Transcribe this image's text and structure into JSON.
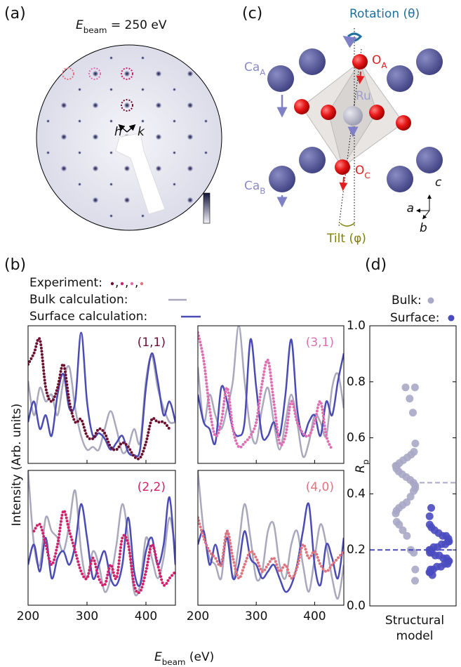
{
  "panels": {
    "a": "(a)",
    "b": "(b)",
    "c": "(c)",
    "d": "(d)"
  },
  "leed": {
    "energy": {
      "symbol": "E",
      "sub": "beam",
      "rest": " = 250 eV"
    },
    "h": "h",
    "k": "k"
  },
  "structure": {
    "rotation": "Rotation (θ)",
    "ca_a": {
      "label": "Ca",
      "sub": "A"
    },
    "o_a": {
      "label": "O",
      "sub": "A"
    },
    "ru": "Ru",
    "o_c": {
      "label": "O",
      "sub": "C"
    },
    "ca_b": {
      "label": "Ca",
      "sub": "B"
    },
    "axis_c": "c",
    "axis_a": "a",
    "axis_b": "b",
    "tilt": "Tilt (φ)"
  },
  "chart_data": [
    {
      "type": "line",
      "legend": {
        "experiment": "Experiment:",
        "separator": ",",
        "bulk": "Bulk calculation:",
        "surface": "Surface calculation:"
      },
      "ylabel": "Intensity (Arb. units)",
      "xlabel": {
        "symbol": "E",
        "sub": "beam",
        "rest": " (eV)"
      },
      "xlim": [
        200,
        450
      ],
      "ylim": [
        0,
        1
      ],
      "xticks": [
        200,
        300,
        400
      ],
      "x": [
        200,
        210,
        220,
        230,
        240,
        250,
        260,
        270,
        280,
        290,
        300,
        310,
        320,
        330,
        340,
        350,
        360,
        370,
        380,
        390,
        400,
        410,
        420,
        430,
        440,
        450
      ],
      "subplots": [
        {
          "title": "(1,1)",
          "series": [
            {
              "color": "#6d0f2e",
              "values": [
                0.72,
                0.8,
                0.9,
                0.55,
                0.45,
                0.55,
                0.72,
                0.45,
                0.3,
                0.32,
                0.2,
                0.18,
                0.25,
                0.22,
                0.12,
                0.1,
                0.15,
                0.12,
                0.05,
                0.04,
                0.15,
                0.32,
                0.3,
                0.3,
                0.25,
                null
              ]
            },
            {
              "color": "#a9a8bd",
              "values": [
                0.6,
                0.35,
                0.55,
                0.45,
                0.5,
                0.35,
                0.6,
                0.7,
                0.4,
                0.2,
                0.1,
                0.12,
                0.1,
                0.25,
                0.38,
                0.25,
                0.08,
                0.12,
                0.25,
                0.15,
                0.6,
                0.78,
                0.55,
                0.4,
                0.3,
                0.3
              ]
            },
            {
              "color": "#4a4bb5",
              "values": [
                0.3,
                0.45,
                0.25,
                0.35,
                0.2,
                0.5,
                0.65,
                0.4,
                0.45,
                0.95,
                0.45,
                0.2,
                0.22,
                0.18,
                0.1,
                0.15,
                0.2,
                0.08,
                0.06,
                0.1,
                0.55,
                0.8,
                0.6,
                0.35,
                0.45,
                0.3
              ]
            }
          ]
        },
        {
          "title": "(3,1)",
          "series": [
            {
              "color": "#df6fb2",
              "values": [
                0.95,
                0.75,
                0.4,
                0.2,
                0.3,
                0.55,
                0.25,
                0.12,
                0.15,
                0.2,
                0.3,
                0.58,
                0.75,
                0.45,
                0.15,
                0.2,
                0.45,
                0.3,
                0.22,
                0.2,
                0.3,
                0.45,
                0.2,
                0.1,
                null,
                null
              ]
            },
            {
              "color": "#a9a8bd",
              "values": [
                0.7,
                0.3,
                0.5,
                0.35,
                0.25,
                0.4,
                0.6,
                1.0,
                0.6,
                0.25,
                0.15,
                0.4,
                0.55,
                0.3,
                0.1,
                0.3,
                0.5,
                0.3,
                0.05,
                0.15,
                0.35,
                0.3,
                0.2,
                0.55,
                0.65,
                0.4
              ]
            },
            {
              "color": "#4a4bb5",
              "values": [
                0.5,
                0.3,
                0.25,
                0.15,
                0.55,
                0.45,
                0.25,
                0.2,
                0.3,
                0.9,
                0.55,
                0.2,
                0.2,
                0.3,
                0.2,
                0.5,
                0.9,
                0.4,
                0.2,
                0.3,
                0.35,
                0.2,
                0.45,
                0.35,
                0.6,
                0.8
              ]
            }
          ]
        },
        {
          "title": "(2,2)",
          "series": [
            {
              "color": "#d1216c",
              "values": [
                null,
                0.55,
                0.6,
                0.45,
                0.3,
                0.45,
                0.7,
                0.55,
                0.4,
                0.25,
                0.2,
                0.35,
                0.2,
                0.15,
                0.3,
                0.2,
                0.5,
                0.45,
                0.15,
                0.1,
                0.25,
                0.45,
                0.3,
                0.15,
                0.2,
                0.25
              ]
            },
            {
              "color": "#a9a8bd",
              "values": [
                1.0,
                0.45,
                0.3,
                0.65,
                0.55,
                0.5,
                0.4,
                0.6,
                0.85,
                0.4,
                0.2,
                0.4,
                0.3,
                0.1,
                0.2,
                0.45,
                0.75,
                0.5,
                0.1,
                0.15,
                0.5,
                0.35,
                0.2,
                0.35,
                0.65,
                0.4
              ]
            },
            {
              "color": "#4a4bb5",
              "values": [
                0.3,
                0.45,
                0.25,
                0.5,
                0.2,
                0.35,
                0.4,
                0.3,
                0.45,
                0.75,
                0.5,
                0.2,
                0.3,
                0.4,
                0.2,
                0.15,
                0.3,
                0.65,
                0.25,
                0.15,
                0.4,
                0.5,
                0.3,
                0.45,
                0.8,
                0.3
              ]
            }
          ]
        },
        {
          "title": "(4,0)",
          "series": [
            {
              "color": "#e0737e",
              "values": [
                0.65,
                0.5,
                0.4,
                0.35,
                0.3,
                0.55,
                0.35,
                0.2,
                0.3,
                0.4,
                0.35,
                0.25,
                0.3,
                0.35,
                0.25,
                0.3,
                0.2,
                0.28,
                0.45,
                0.35,
                0.4,
                0.3,
                0.25,
                0.3,
                0.35,
                0.4
              ]
            },
            {
              "color": "#a9a8bd",
              "values": [
                1.0,
                0.55,
                0.35,
                0.3,
                0.2,
                0.55,
                0.2,
                0.45,
                0.75,
                0.5,
                0.2,
                0.25,
                0.55,
                0.6,
                0.3,
                0.2,
                0.45,
                0.55,
                0.3,
                0.1,
                0.35,
                0.6,
                0.45,
                0.2,
                0.05,
                0.3
              ]
            },
            {
              "color": "#4a4bb5",
              "values": [
                0.45,
                0.55,
                0.3,
                0.45,
                0.3,
                0.5,
                0.2,
                0.3,
                0.55,
                0.35,
                0.3,
                0.2,
                0.25,
                0.3,
                0.2,
                0.1,
                0.15,
                0.3,
                0.55,
                0.75,
                0.3,
                0.15,
                0.45,
                0.35,
                0.2,
                0.5
              ]
            }
          ]
        }
      ]
    },
    {
      "type": "scatter",
      "legend": {
        "bulk": "Bulk:",
        "surface": "Surface:"
      },
      "ylabel": {
        "symbol": "R",
        "sub": "p"
      },
      "xlabel": [
        "Structural",
        "model"
      ],
      "ylim": [
        0,
        1
      ],
      "yticks": [
        {
          "value": 0,
          "label": "0.0"
        },
        0.2,
        0.4,
        0.6,
        0.8,
        {
          "value": 1,
          "label": "1.0"
        }
      ],
      "series": [
        {
          "color": "#a9a8c6",
          "mean": 0.44,
          "values": [
            0.78,
            0.74,
            0.69,
            0.78,
            0.58,
            0.55,
            0.54,
            0.53,
            0.52,
            0.51,
            0.5,
            0.5,
            0.49,
            0.48,
            0.47,
            0.46,
            0.45,
            0.44,
            0.43,
            0.42,
            0.41,
            0.39,
            0.37,
            0.36,
            0.35,
            0.34,
            0.33,
            0.3,
            0.29,
            0.27,
            0.25,
            0.2,
            0.19,
            0.13,
            0.09
          ]
        },
        {
          "color": "#4a4bc0",
          "mean": 0.2,
          "values": [
            0.35,
            0.32,
            0.29,
            0.28,
            0.27,
            0.26,
            0.25,
            0.25,
            0.24,
            0.23,
            0.23,
            0.22,
            0.22,
            0.21,
            0.21,
            0.2,
            0.2,
            0.19,
            0.19,
            0.18,
            0.18,
            0.17,
            0.17,
            0.16,
            0.16,
            0.15,
            0.15,
            0.14,
            0.14,
            0.13,
            0.13,
            0.12,
            0.12,
            0.11
          ]
        }
      ]
    }
  ]
}
